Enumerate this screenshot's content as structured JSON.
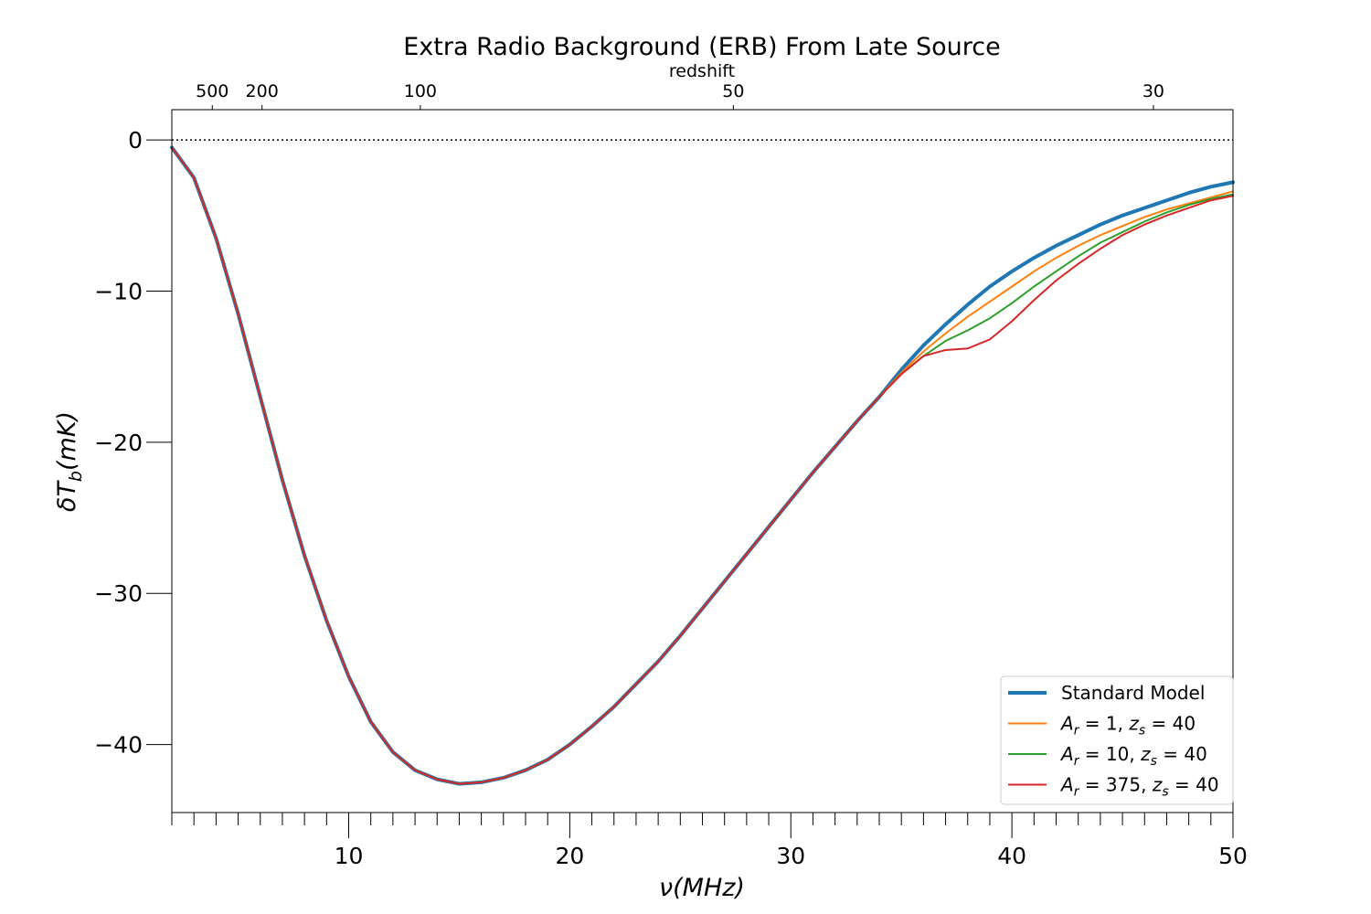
{
  "chart_data": {
    "type": "line",
    "title": "Extra Radio Background (ERB) From Late Source",
    "xlabel": "ν(MHz)",
    "ylabel": "δT_b(mK)",
    "xlim": [
      2,
      50
    ],
    "ylim": [
      -44.5,
      2
    ],
    "x_ticks": [
      10,
      20,
      30,
      40,
      50
    ],
    "x_minor_step": 1,
    "y_ticks": [
      0,
      -10,
      -20,
      -30,
      -40
    ],
    "y_tick_labels": [
      "0",
      "−10",
      "−20",
      "−30",
      "−40"
    ],
    "top_axis": {
      "label": "redshift",
      "ticks": [
        {
          "label": "500",
          "nu": 3.83
        },
        {
          "label": "200",
          "nu": 6.08
        },
        {
          "label": "100",
          "nu": 13.24
        },
        {
          "label": "50",
          "nu": 27.4
        },
        {
          "label": "30",
          "nu": 46.4
        }
      ]
    },
    "reference_line": {
      "y": 0,
      "style": "dotted"
    },
    "legend": {
      "position": "lower-right",
      "entries": [
        {
          "text": "Standard Model",
          "color": "#1f77b4"
        },
        {
          "text_main": "A",
          "text_sub": "r",
          "text_eq": " = 1, ",
          "text_main2": "z",
          "text_sub2": "s",
          "text_eq2": " = 40",
          "color": "#ff7f0e"
        },
        {
          "text_main": "A",
          "text_sub": "r",
          "text_eq": " = 10, ",
          "text_main2": "z",
          "text_sub2": "s",
          "text_eq2": " = 40",
          "color": "#2ca02c"
        },
        {
          "text_main": "A",
          "text_sub": "r",
          "text_eq": " = 375, ",
          "text_main2": "z",
          "text_sub2": "s",
          "text_eq2": " = 40",
          "color": "#d62728"
        }
      ]
    },
    "series": [
      {
        "name": "Standard Model",
        "color": "#1f77b4",
        "width": 4,
        "points": [
          [
            2,
            -0.5
          ],
          [
            3,
            -2.5
          ],
          [
            4,
            -6.5
          ],
          [
            5,
            -11.5
          ],
          [
            6,
            -17
          ],
          [
            7,
            -22.5
          ],
          [
            8,
            -27.5
          ],
          [
            9,
            -31.8
          ],
          [
            10,
            -35.5
          ],
          [
            11,
            -38.5
          ],
          [
            12,
            -40.5
          ],
          [
            13,
            -41.7
          ],
          [
            14,
            -42.3
          ],
          [
            15,
            -42.6
          ],
          [
            16,
            -42.5
          ],
          [
            17,
            -42.2
          ],
          [
            18,
            -41.7
          ],
          [
            19,
            -41
          ],
          [
            20,
            -40
          ],
          [
            21,
            -38.8
          ],
          [
            22,
            -37.5
          ],
          [
            23,
            -36
          ],
          [
            24,
            -34.5
          ],
          [
            25,
            -32.8
          ],
          [
            26,
            -31
          ],
          [
            27,
            -29.2
          ],
          [
            28,
            -27.4
          ],
          [
            29,
            -25.6
          ],
          [
            30,
            -23.8
          ],
          [
            31,
            -22
          ],
          [
            32,
            -20.3
          ],
          [
            33,
            -18.6
          ],
          [
            34,
            -17
          ],
          [
            35,
            -15.2
          ],
          [
            36,
            -13.6
          ],
          [
            37,
            -12.2
          ],
          [
            38,
            -10.9
          ],
          [
            39,
            -9.7
          ],
          [
            40,
            -8.7
          ],
          [
            41,
            -7.8
          ],
          [
            42,
            -7
          ],
          [
            43,
            -6.3
          ],
          [
            44,
            -5.6
          ],
          [
            45,
            -5
          ],
          [
            46,
            -4.5
          ],
          [
            47,
            -4
          ],
          [
            48,
            -3.5
          ],
          [
            49,
            -3.1
          ],
          [
            50,
            -2.8
          ]
        ]
      },
      {
        "name": "A_r = 1, z_s = 40",
        "color": "#ff7f0e",
        "width": 2,
        "points": [
          [
            2,
            -0.5
          ],
          [
            3,
            -2.5
          ],
          [
            4,
            -6.5
          ],
          [
            5,
            -11.5
          ],
          [
            6,
            -17
          ],
          [
            7,
            -22.5
          ],
          [
            8,
            -27.5
          ],
          [
            9,
            -31.8
          ],
          [
            10,
            -35.5
          ],
          [
            11,
            -38.5
          ],
          [
            12,
            -40.5
          ],
          [
            13,
            -41.7
          ],
          [
            14,
            -42.3
          ],
          [
            15,
            -42.6
          ],
          [
            16,
            -42.5
          ],
          [
            17,
            -42.2
          ],
          [
            18,
            -41.7
          ],
          [
            19,
            -41
          ],
          [
            20,
            -40
          ],
          [
            21,
            -38.8
          ],
          [
            22,
            -37.5
          ],
          [
            23,
            -36
          ],
          [
            24,
            -34.5
          ],
          [
            25,
            -32.8
          ],
          [
            26,
            -31
          ],
          [
            27,
            -29.2
          ],
          [
            28,
            -27.4
          ],
          [
            29,
            -25.6
          ],
          [
            30,
            -23.8
          ],
          [
            31,
            -22
          ],
          [
            32,
            -20.3
          ],
          [
            33,
            -18.6
          ],
          [
            34,
            -17
          ],
          [
            35,
            -15.4
          ],
          [
            36,
            -14
          ],
          [
            37,
            -12.8
          ],
          [
            38,
            -11.7
          ],
          [
            39,
            -10.7
          ],
          [
            40,
            -9.7
          ],
          [
            41,
            -8.7
          ],
          [
            42,
            -7.8
          ],
          [
            43,
            -7
          ],
          [
            44,
            -6.3
          ],
          [
            45,
            -5.7
          ],
          [
            46,
            -5.1
          ],
          [
            47,
            -4.6
          ],
          [
            48,
            -4.2
          ],
          [
            49,
            -3.8
          ],
          [
            50,
            -3.4
          ]
        ]
      },
      {
        "name": "A_r = 10, z_s = 40",
        "color": "#2ca02c",
        "width": 2,
        "points": [
          [
            2,
            -0.5
          ],
          [
            3,
            -2.5
          ],
          [
            4,
            -6.5
          ],
          [
            5,
            -11.5
          ],
          [
            6,
            -17
          ],
          [
            7,
            -22.5
          ],
          [
            8,
            -27.5
          ],
          [
            9,
            -31.8
          ],
          [
            10,
            -35.5
          ],
          [
            11,
            -38.5
          ],
          [
            12,
            -40.5
          ],
          [
            13,
            -41.7
          ],
          [
            14,
            -42.3
          ],
          [
            15,
            -42.6
          ],
          [
            16,
            -42.5
          ],
          [
            17,
            -42.2
          ],
          [
            18,
            -41.7
          ],
          [
            19,
            -41
          ],
          [
            20,
            -40
          ],
          [
            21,
            -38.8
          ],
          [
            22,
            -37.5
          ],
          [
            23,
            -36
          ],
          [
            24,
            -34.5
          ],
          [
            25,
            -32.8
          ],
          [
            26,
            -31
          ],
          [
            27,
            -29.2
          ],
          [
            28,
            -27.4
          ],
          [
            29,
            -25.6
          ],
          [
            30,
            -23.8
          ],
          [
            31,
            -22
          ],
          [
            32,
            -20.3
          ],
          [
            33,
            -18.6
          ],
          [
            34,
            -17
          ],
          [
            35,
            -15.5
          ],
          [
            36,
            -14.3
          ],
          [
            37,
            -13.3
          ],
          [
            38,
            -12.6
          ],
          [
            39,
            -11.8
          ],
          [
            40,
            -10.8
          ],
          [
            41,
            -9.7
          ],
          [
            42,
            -8.7
          ],
          [
            43,
            -7.7
          ],
          [
            44,
            -6.8
          ],
          [
            45,
            -6.1
          ],
          [
            46,
            -5.4
          ],
          [
            47,
            -4.8
          ],
          [
            48,
            -4.3
          ],
          [
            49,
            -3.9
          ],
          [
            50,
            -3.6
          ]
        ]
      },
      {
        "name": "A_r = 375, z_s = 40",
        "color": "#d62728",
        "width": 2,
        "points": [
          [
            2,
            -0.5
          ],
          [
            3,
            -2.5
          ],
          [
            4,
            -6.5
          ],
          [
            5,
            -11.5
          ],
          [
            6,
            -17
          ],
          [
            7,
            -22.5
          ],
          [
            8,
            -27.5
          ],
          [
            9,
            -31.8
          ],
          [
            10,
            -35.5
          ],
          [
            11,
            -38.5
          ],
          [
            12,
            -40.5
          ],
          [
            13,
            -41.7
          ],
          [
            14,
            -42.3
          ],
          [
            15,
            -42.6
          ],
          [
            16,
            -42.5
          ],
          [
            17,
            -42.2
          ],
          [
            18,
            -41.7
          ],
          [
            19,
            -41
          ],
          [
            20,
            -40
          ],
          [
            21,
            -38.8
          ],
          [
            22,
            -37.5
          ],
          [
            23,
            -36
          ],
          [
            24,
            -34.5
          ],
          [
            25,
            -32.8
          ],
          [
            26,
            -31
          ],
          [
            27,
            -29.2
          ],
          [
            28,
            -27.4
          ],
          [
            29,
            -25.6
          ],
          [
            30,
            -23.8
          ],
          [
            31,
            -22
          ],
          [
            32,
            -20.3
          ],
          [
            33,
            -18.6
          ],
          [
            34,
            -17
          ],
          [
            35,
            -15.5
          ],
          [
            36,
            -14.3
          ],
          [
            37,
            -13.9
          ],
          [
            38,
            -13.8
          ],
          [
            39,
            -13.2
          ],
          [
            40,
            -12
          ],
          [
            41,
            -10.6
          ],
          [
            42,
            -9.3
          ],
          [
            43,
            -8.2
          ],
          [
            44,
            -7.2
          ],
          [
            45,
            -6.3
          ],
          [
            46,
            -5.6
          ],
          [
            47,
            -5
          ],
          [
            48,
            -4.5
          ],
          [
            49,
            -4
          ],
          [
            50,
            -3.7
          ]
        ]
      }
    ]
  }
}
